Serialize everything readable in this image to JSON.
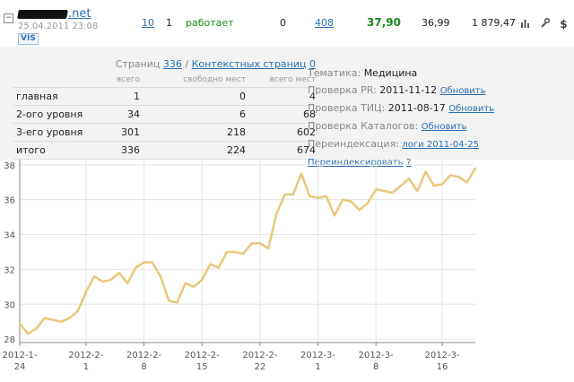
{
  "site": {
    "domain_suffix": ".net",
    "date": "25.04.2011 23:08",
    "badge": "VIS",
    "col_links": "10",
    "col_num": "1",
    "status": "работает",
    "col_zero": "0",
    "col_pages": "408",
    "price": "37,90",
    "price2": "36,99",
    "total": "1 879,47"
  },
  "icons": [
    "bar-chart-icon",
    "wrench-icon",
    "dollar-icon"
  ],
  "stats": {
    "pages_label": "Страниц",
    "pages_value": "336",
    "separator": "/",
    "context_label": "Контекстных страниц",
    "context_value": "0",
    "sub_headers": [
      "всего",
      "свободно мест",
      "всего мест"
    ],
    "rows": [
      {
        "label": "главная",
        "v1": "1",
        "v2": "0",
        "v3": "4"
      },
      {
        "label": "2-ого уровня",
        "v1": "34",
        "v2": "6",
        "v3": "68"
      },
      {
        "label": "3-его уровня",
        "v1": "301",
        "v2": "218",
        "v3": "602"
      },
      {
        "label": "итого",
        "v1": "336",
        "v2": "224",
        "v3": "674"
      }
    ]
  },
  "info": {
    "topic_label": "Тематика:",
    "topic_value": "Медицина",
    "pr_label": "Проверка PR:",
    "pr_date": "2011-11-12",
    "pr_update": "Обновить",
    "tic_label": "Проверка ТИЦ:",
    "tic_date": "2011-08-17",
    "tic_update": "Обновить",
    "cat_label": "Проверка Каталогов:",
    "cat_update": "Обновить",
    "reindex_label": "Переиндексация:",
    "reindex_link": "логи 2011-04-25",
    "reindex_action": "Переиндексировать",
    "reindex_help": "?"
  },
  "chart_data": {
    "type": "line",
    "color": "#e8c77a",
    "ylim": [
      27.8,
      38.3
    ],
    "yticks": [
      28,
      30,
      32,
      34,
      36,
      38
    ],
    "xticks": [
      {
        "i": 0,
        "l1": "2012-1-",
        "l2": "24"
      },
      {
        "i": 8,
        "l1": "2012-2-",
        "l2": "1"
      },
      {
        "i": 15,
        "l1": "2012-2-",
        "l2": "8"
      },
      {
        "i": 22,
        "l1": "2012-2-",
        "l2": "15"
      },
      {
        "i": 29,
        "l1": "2012-2-",
        "l2": "22"
      },
      {
        "i": 36,
        "l1": "2012-3-",
        "l2": "1"
      },
      {
        "i": 43,
        "l1": "2012-3-",
        "l2": "8"
      },
      {
        "i": 51,
        "l1": "2012-3-",
        "l2": "16"
      }
    ],
    "values": [
      28.9,
      28.3,
      28.6,
      29.2,
      29.1,
      29.0,
      29.2,
      29.6,
      30.7,
      31.6,
      31.3,
      31.4,
      31.8,
      31.2,
      32.1,
      32.4,
      32.4,
      31.6,
      30.2,
      30.1,
      31.2,
      31.0,
      31.4,
      32.3,
      32.1,
      33.0,
      33.0,
      32.9,
      33.5,
      33.5,
      33.2,
      35.2,
      36.3,
      36.3,
      37.5,
      36.2,
      36.1,
      36.2,
      35.1,
      36.0,
      35.9,
      35.4,
      35.8,
      36.6,
      36.5,
      36.4,
      36.8,
      37.2,
      36.5,
      37.6,
      36.8,
      36.9,
      37.4,
      37.3,
      37.0,
      37.8
    ]
  }
}
